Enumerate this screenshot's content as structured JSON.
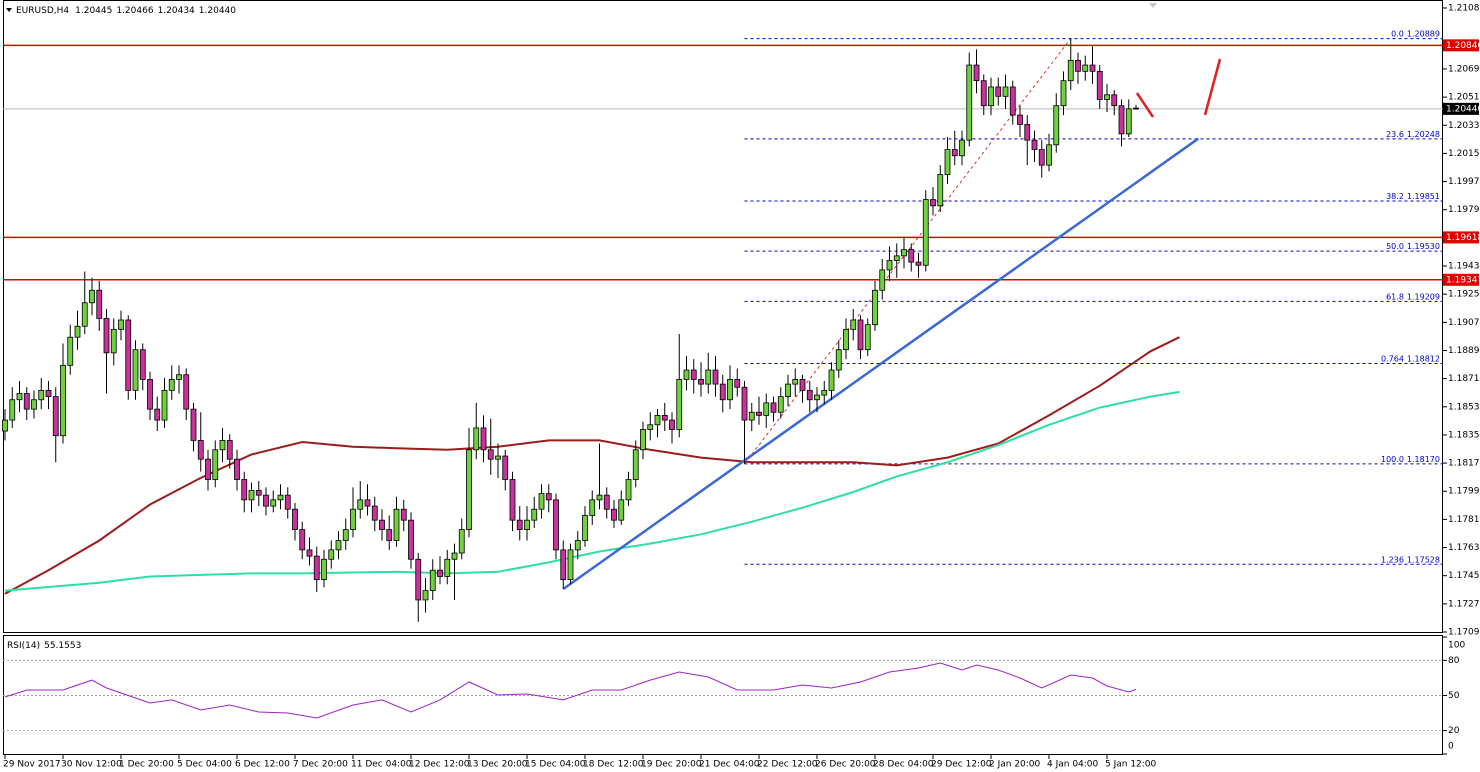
{
  "chart_data": {
    "type": "candlestick",
    "title": "EURUSD,H4",
    "title_values": [
      "1.20445",
      "1.20466",
      "1.20434",
      "1.20440"
    ],
    "up_color": "#6fd13c",
    "down_color": "#c8329a",
    "categories": [
      "29 Nov 2017",
      null,
      null,
      null,
      null,
      null,
      null,
      null,
      "30 Nov 12:00",
      null,
      null,
      null,
      null,
      null,
      null,
      null,
      "1 Dec 20:00",
      null,
      null,
      null,
      null,
      null,
      null,
      null,
      "5 Dec 04:00",
      null,
      null,
      null,
      null,
      null,
      null,
      null,
      "6 Dec 12:00",
      null,
      null,
      null,
      null,
      null,
      null,
      null,
      "7 Dec 20:00",
      null,
      null,
      null,
      null,
      null,
      null,
      null,
      "11 Dec 04:00",
      null,
      null,
      null,
      null,
      null,
      null,
      null,
      "12 Dec 12:00",
      null,
      null,
      null,
      null,
      null,
      null,
      null,
      "13 Dec 20:00",
      null,
      null,
      null,
      null,
      null,
      null,
      null,
      "15 Dec 04:00",
      null,
      null,
      null,
      null,
      null,
      null,
      null,
      "18 Dec 12:00",
      null,
      null,
      null,
      null,
      null,
      null,
      null,
      "19 Dec 20:00",
      null,
      null,
      null,
      null,
      null,
      null,
      null,
      "21 Dec 04:00",
      null,
      null,
      null,
      null,
      null,
      null,
      null,
      "22 Dec 12:00",
      null,
      null,
      null,
      null,
      null,
      null,
      null,
      "26 Dec 20:00",
      null,
      null,
      null,
      null,
      null,
      null,
      null,
      "28 Dec 04:00",
      null,
      null,
      null,
      null,
      null,
      null,
      null,
      "29 Dec 12:00",
      null,
      null,
      null,
      null,
      null,
      null,
      null,
      "2 Jan 20:00",
      null,
      null,
      null,
      null,
      null,
      null,
      null,
      "4 Jan 04:00",
      null,
      null,
      null,
      null,
      null,
      null,
      null,
      "5 Jan 12:00",
      null,
      null,
      null,
      null
    ],
    "ohlc": [
      [
        1.1838,
        1.1852,
        1.1832,
        1.1845
      ],
      [
        1.1845,
        1.1866,
        1.184,
        1.1858
      ],
      [
        1.1858,
        1.187,
        1.185,
        1.1862
      ],
      [
        1.1862,
        1.1866,
        1.1845,
        1.1852
      ],
      [
        1.1852,
        1.1864,
        1.1846,
        1.1858
      ],
      [
        1.1858,
        1.1872,
        1.1852,
        1.1864
      ],
      [
        1.1864,
        1.187,
        1.1852,
        1.186
      ],
      [
        1.186,
        1.1866,
        1.1818,
        1.1835
      ],
      [
        1.1835,
        1.1894,
        1.183,
        1.188
      ],
      [
        1.188,
        1.1906,
        1.1874,
        1.1898
      ],
      [
        1.1898,
        1.1915,
        1.189,
        1.1905
      ],
      [
        1.1905,
        1.194,
        1.19,
        1.192
      ],
      [
        1.192,
        1.1936,
        1.1912,
        1.1928
      ],
      [
        1.1928,
        1.1934,
        1.1902,
        1.191
      ],
      [
        1.191,
        1.1916,
        1.1862,
        1.1888
      ],
      [
        1.1888,
        1.191,
        1.188,
        1.1903
      ],
      [
        1.1903,
        1.1915,
        1.1896,
        1.1909
      ],
      [
        1.1909,
        1.1912,
        1.1858,
        1.1864
      ],
      [
        1.1864,
        1.1896,
        1.1858,
        1.189
      ],
      [
        1.189,
        1.1894,
        1.1864,
        1.1871
      ],
      [
        1.1871,
        1.1876,
        1.1845,
        1.1852
      ],
      [
        1.1852,
        1.186,
        1.1838,
        1.1845
      ],
      [
        1.1845,
        1.1872,
        1.184,
        1.1864
      ],
      [
        1.1864,
        1.188,
        1.1858,
        1.1871
      ],
      [
        1.1871,
        1.188,
        1.1862,
        1.1874
      ],
      [
        1.1874,
        1.1878,
        1.1845,
        1.1852
      ],
      [
        1.1852,
        1.1856,
        1.1825,
        1.1832
      ],
      [
        1.1832,
        1.185,
        1.1812,
        1.182
      ],
      [
        1.182,
        1.1826,
        1.18,
        1.1807
      ],
      [
        1.1807,
        1.1832,
        1.1802,
        1.1826
      ],
      [
        1.1826,
        1.184,
        1.1818,
        1.1832
      ],
      [
        1.1832,
        1.1836,
        1.1814,
        1.182
      ],
      [
        1.182,
        1.1826,
        1.18,
        1.1807
      ],
      [
        1.1807,
        1.1812,
        1.1786,
        1.1794
      ],
      [
        1.1794,
        1.1805,
        1.1786,
        1.18
      ],
      [
        1.18,
        1.1806,
        1.179,
        1.1797
      ],
      [
        1.1797,
        1.1802,
        1.1784,
        1.179
      ],
      [
        1.179,
        1.18,
        1.1786,
        1.1794
      ],
      [
        1.1794,
        1.1804,
        1.1788,
        1.1797
      ],
      [
        1.1797,
        1.1802,
        1.1782,
        1.1788
      ],
      [
        1.1788,
        1.1792,
        1.1768,
        1.1775
      ],
      [
        1.1775,
        1.178,
        1.1756,
        1.1762
      ],
      [
        1.1762,
        1.177,
        1.1752,
        1.1758
      ],
      [
        1.1758,
        1.1764,
        1.1735,
        1.1743
      ],
      [
        1.1743,
        1.1762,
        1.1738,
        1.1756
      ],
      [
        1.1756,
        1.1768,
        1.175,
        1.1762
      ],
      [
        1.1762,
        1.1774,
        1.1756,
        1.1768
      ],
      [
        1.1768,
        1.1782,
        1.1762,
        1.1775
      ],
      [
        1.1775,
        1.1802,
        1.177,
        1.1788
      ],
      [
        1.1788,
        1.1806,
        1.1782,
        1.1794
      ],
      [
        1.1794,
        1.1804,
        1.1784,
        1.179
      ],
      [
        1.179,
        1.1796,
        1.1774,
        1.1781
      ],
      [
        1.1781,
        1.1788,
        1.1768,
        1.1775
      ],
      [
        1.1775,
        1.1784,
        1.1762,
        1.1768
      ],
      [
        1.1768,
        1.1796,
        1.1764,
        1.1788
      ],
      [
        1.1788,
        1.1794,
        1.1774,
        1.1781
      ],
      [
        1.1781,
        1.1786,
        1.175,
        1.1756
      ],
      [
        1.1756,
        1.176,
        1.1716,
        1.173
      ],
      [
        1.173,
        1.1744,
        1.1722,
        1.1736
      ],
      [
        1.1736,
        1.1756,
        1.173,
        1.1749
      ],
      [
        1.1749,
        1.1758,
        1.174,
        1.1745
      ],
      [
        1.1745,
        1.1762,
        1.174,
        1.1756
      ],
      [
        1.1756,
        1.1766,
        1.173,
        1.176
      ],
      [
        1.176,
        1.1782,
        1.1756,
        1.1775
      ],
      [
        1.1775,
        1.184,
        1.177,
        1.1826
      ],
      [
        1.1826,
        1.1856,
        1.182,
        1.184
      ],
      [
        1.184,
        1.1848,
        1.1818,
        1.1826
      ],
      [
        1.1826,
        1.1846,
        1.181,
        1.182
      ],
      [
        1.182,
        1.183,
        1.1808,
        1.1822
      ],
      [
        1.1822,
        1.1826,
        1.18,
        1.1807
      ],
      [
        1.1807,
        1.1812,
        1.1774,
        1.1781
      ],
      [
        1.1781,
        1.179,
        1.1768,
        1.1775
      ],
      [
        1.1775,
        1.179,
        1.1768,
        1.1781
      ],
      [
        1.1781,
        1.1796,
        1.1776,
        1.1788
      ],
      [
        1.1788,
        1.1804,
        1.1782,
        1.1798
      ],
      [
        1.1798,
        1.1804,
        1.1786,
        1.1794
      ],
      [
        1.1794,
        1.1798,
        1.1756,
        1.1762
      ],
      [
        1.1762,
        1.1768,
        1.1737,
        1.1743
      ],
      [
        1.1743,
        1.1766,
        1.174,
        1.1762
      ],
      [
        1.1762,
        1.1774,
        1.1756,
        1.1768
      ],
      [
        1.1768,
        1.179,
        1.1764,
        1.1784
      ],
      [
        1.1784,
        1.18,
        1.1778,
        1.1794
      ],
      [
        1.1794,
        1.183,
        1.1788,
        1.1797
      ],
      [
        1.1797,
        1.1802,
        1.1782,
        1.1788
      ],
      [
        1.1788,
        1.1794,
        1.1776,
        1.1781
      ],
      [
        1.1781,
        1.18,
        1.1778,
        1.1794
      ],
      [
        1.1794,
        1.1812,
        1.179,
        1.1807
      ],
      [
        1.1807,
        1.1832,
        1.1802,
        1.1826
      ],
      [
        1.1826,
        1.1844,
        1.182,
        1.1839
      ],
      [
        1.1839,
        1.185,
        1.1832,
        1.1842
      ],
      [
        1.1842,
        1.1852,
        1.1834,
        1.1848
      ],
      [
        1.1848,
        1.1856,
        1.1838,
        1.1845
      ],
      [
        1.1845,
        1.185,
        1.183,
        1.1839
      ],
      [
        1.1839,
        1.19,
        1.1834,
        1.1871
      ],
      [
        1.1871,
        1.1886,
        1.1864,
        1.1877
      ],
      [
        1.1877,
        1.1884,
        1.1862,
        1.1871
      ],
      [
        1.1871,
        1.1882,
        1.186,
        1.1868
      ],
      [
        1.1868,
        1.1888,
        1.1862,
        1.1877
      ],
      [
        1.1877,
        1.1886,
        1.186,
        1.1868
      ],
      [
        1.1868,
        1.1874,
        1.185,
        1.1858
      ],
      [
        1.1858,
        1.188,
        1.1852,
        1.1871
      ],
      [
        1.1871,
        1.1878,
        1.186,
        1.1866
      ],
      [
        1.1866,
        1.187,
        1.1817,
        1.1845
      ],
      [
        1.1845,
        1.1856,
        1.1838,
        1.185
      ],
      [
        1.185,
        1.186,
        1.1842,
        1.1848
      ],
      [
        1.1848,
        1.1862,
        1.184,
        1.1856
      ],
      [
        1.1856,
        1.186,
        1.1844,
        1.185
      ],
      [
        1.185,
        1.1866,
        1.1846,
        1.186
      ],
      [
        1.186,
        1.1874,
        1.1854,
        1.1868
      ],
      [
        1.1868,
        1.1878,
        1.186,
        1.1871
      ],
      [
        1.1871,
        1.1874,
        1.1856,
        1.1864
      ],
      [
        1.1864,
        1.187,
        1.185,
        1.1858
      ],
      [
        1.1858,
        1.1866,
        1.185,
        1.1861
      ],
      [
        1.1861,
        1.187,
        1.1855,
        1.1864
      ],
      [
        1.1864,
        1.1882,
        1.1858,
        1.1877
      ],
      [
        1.1877,
        1.1896,
        1.1872,
        1.189
      ],
      [
        1.189,
        1.191,
        1.1884,
        1.1903
      ],
      [
        1.1903,
        1.1916,
        1.1896,
        1.1909
      ],
      [
        1.1909,
        1.1912,
        1.1884,
        1.189
      ],
      [
        1.189,
        1.191,
        1.1886,
        1.1906
      ],
      [
        1.1906,
        1.1934,
        1.1902,
        1.1928
      ],
      [
        1.1928,
        1.1948,
        1.1922,
        1.1941
      ],
      [
        1.1941,
        1.1956,
        1.1934,
        1.1947
      ],
      [
        1.1947,
        1.1958,
        1.1936,
        1.195
      ],
      [
        1.195,
        1.1962,
        1.1942,
        1.1954
      ],
      [
        1.1954,
        1.1958,
        1.194,
        1.1946
      ],
      [
        1.1946,
        1.1952,
        1.1936,
        1.1944
      ],
      [
        1.1944,
        1.1992,
        1.194,
        1.1986
      ],
      [
        1.1986,
        1.1994,
        1.1976,
        1.1982
      ],
      [
        1.1982,
        1.2008,
        1.1978,
        1.2002
      ],
      [
        1.2002,
        1.2026,
        1.1996,
        1.2018
      ],
      [
        1.2018,
        1.203,
        1.2008,
        1.2014
      ],
      [
        1.2014,
        1.203,
        1.2008,
        1.2024
      ],
      [
        1.2024,
        1.208,
        1.202,
        1.2072
      ],
      [
        1.2072,
        1.2082,
        1.2054,
        1.2062
      ],
      [
        1.2062,
        1.2066,
        1.204,
        1.2046
      ],
      [
        1.2046,
        1.2064,
        1.204,
        1.2058
      ],
      [
        1.2058,
        1.2064,
        1.2046,
        1.2052
      ],
      [
        1.2052,
        1.2066,
        1.2044,
        1.2058
      ],
      [
        1.2058,
        1.2062,
        1.2034,
        1.204
      ],
      [
        1.204,
        1.2046,
        1.2026,
        1.2034
      ],
      [
        1.2034,
        1.204,
        1.2008,
        1.2024
      ],
      [
        1.2024,
        1.203,
        1.201,
        1.2018
      ],
      [
        1.2018,
        1.2024,
        1.2,
        1.2008
      ],
      [
        1.2008,
        1.2028,
        1.2004,
        1.2021
      ],
      [
        1.2021,
        1.2054,
        1.2016,
        1.2046
      ],
      [
        1.2046,
        1.2068,
        1.204,
        1.2062
      ],
      [
        1.2062,
        1.2089,
        1.2056,
        1.2075
      ],
      [
        1.2075,
        1.208,
        1.206,
        1.2068
      ],
      [
        1.2068,
        1.2078,
        1.2062,
        1.2072
      ],
      [
        1.2072,
        1.2084,
        1.206,
        1.2068
      ],
      [
        1.2068,
        1.2072,
        1.2044,
        1.205
      ],
      [
        1.205,
        1.206,
        1.2042,
        1.2053
      ],
      [
        1.2053,
        1.2056,
        1.204,
        1.2046
      ],
      [
        1.2046,
        1.205,
        1.202,
        1.2028
      ],
      [
        1.2028,
        1.205,
        1.2026,
        1.2044
      ],
      [
        1.20445,
        1.20466,
        1.20434,
        1.2044
      ]
    ],
    "moving_averages": [
      {
        "color": "#9b1c1c",
        "x": [
          0,
          6,
          13,
          20,
          27,
          34,
          41,
          48,
          54,
          61,
          68,
          75,
          82,
          89,
          96,
          103,
          110,
          117,
          123,
          130,
          137,
          144,
          151,
          158,
          162
        ],
        "values": [
          1.1734,
          1.1749,
          1.1768,
          1.1791,
          1.1808,
          1.1823,
          1.1831,
          1.1828,
          1.1827,
          1.1826,
          1.1828,
          1.1832,
          1.1832,
          1.1826,
          1.1821,
          1.1818,
          1.1818,
          1.1818,
          1.1816,
          1.1821,
          1.183,
          1.1848,
          1.1867,
          1.1889,
          1.1898
        ]
      },
      {
        "color": "#2ee0a0",
        "x": [
          0,
          13,
          20,
          27,
          34,
          41,
          54,
          61,
          68,
          75,
          82,
          89,
          96,
          103,
          110,
          117,
          123,
          130,
          137,
          144,
          151,
          158,
          162
        ],
        "values": [
          1.1736,
          1.1741,
          1.1745,
          1.1746,
          1.1747,
          1.1747,
          1.1748,
          1.1747,
          1.1748,
          1.1754,
          1.1761,
          1.1766,
          1.1772,
          1.178,
          1.1789,
          1.1799,
          1.1809,
          1.1818,
          1.1829,
          1.1842,
          1.1853,
          1.186,
          1.1863
        ]
      }
    ],
    "ylim": [
      1.17095,
      1.21136
    ],
    "yticks": [
      1.21085,
      1.20695,
      1.20515,
      1.20335,
      1.20155,
      1.19975,
      1.19795,
      1.19435,
      1.19255,
      1.19075,
      1.18895,
      1.18715,
      1.18535,
      1.18355,
      1.18175,
      1.17995,
      1.17815,
      1.17635,
      1.17455,
      1.17275,
      1.17095
    ],
    "levels": [
      {
        "value": 1.20846,
        "color": "#e00000"
      },
      {
        "value": 1.19618,
        "color": "#e00000"
      },
      {
        "value": 1.19347,
        "color": "#e00000"
      }
    ],
    "current_price": {
      "value": 1.2044,
      "label": "1.20440"
    },
    "fibonacci": {
      "x": [
        102,
        147
      ],
      "color": "#0000c8",
      "line_color": "#e03030",
      "levels": [
        {
          "ratio": "0.0",
          "price": 1.20889
        },
        {
          "ratio": "23.6",
          "price": 1.20248
        },
        {
          "ratio": "38.2",
          "price": 1.19851
        },
        {
          "ratio": "50.0",
          "price": {
            "value": 1.1953,
            "label": "1.19530"
          }
        },
        {
          "ratio": "61.8",
          "price": 1.19209
        },
        {
          "ratio": "0.764",
          "price": 1.18812
        },
        {
          "ratio": "100.0",
          "price": {
            "value": 1.1817,
            "label": "1.18170"
          }
        },
        {
          "ratio": "1.236",
          "price": 1.17528
        }
      ]
    },
    "trendlines": [
      {
        "color": "#3b68d4",
        "x": [
          77,
          164.6
        ],
        "values": [
          1.1737,
          1.2025
        ]
      }
    ],
    "rsi": {
      "title": "RSI(14)",
      "value": 55.1553,
      "color": "#a020c8",
      "ylim": [
        0,
        100
      ],
      "yticks": [
        100,
        80,
        50,
        20,
        0
      ],
      "levels": [
        80,
        50,
        20
      ],
      "x": [
        0,
        3,
        8,
        12,
        14,
        20,
        23,
        27,
        31,
        35,
        39,
        43,
        48,
        52,
        56,
        60,
        64,
        68,
        72,
        77,
        81,
        85,
        89,
        93,
        97,
        101,
        106,
        110,
        114,
        118,
        122,
        126,
        129,
        132,
        134,
        137,
        140,
        143,
        147,
        150,
        152,
        155,
        156
      ],
      "values": [
        48.7,
        54.7,
        54.7,
        63.2,
        56.4,
        43.6,
        46.2,
        37.6,
        41.9,
        35.9,
        35.0,
        30.8,
        41.9,
        46.2,
        35.9,
        46.2,
        61.5,
        50.4,
        51.3,
        46.2,
        54.7,
        54.7,
        63.2,
        70.1,
        65.8,
        54.7,
        54.7,
        59.0,
        56.4,
        61.5,
        70.1,
        73.5,
        77.8,
        71.8,
        76.1,
        71.8,
        65.0,
        56.4,
        67.5,
        65.0,
        58.1,
        53.0,
        55.2
      ]
    }
  }
}
